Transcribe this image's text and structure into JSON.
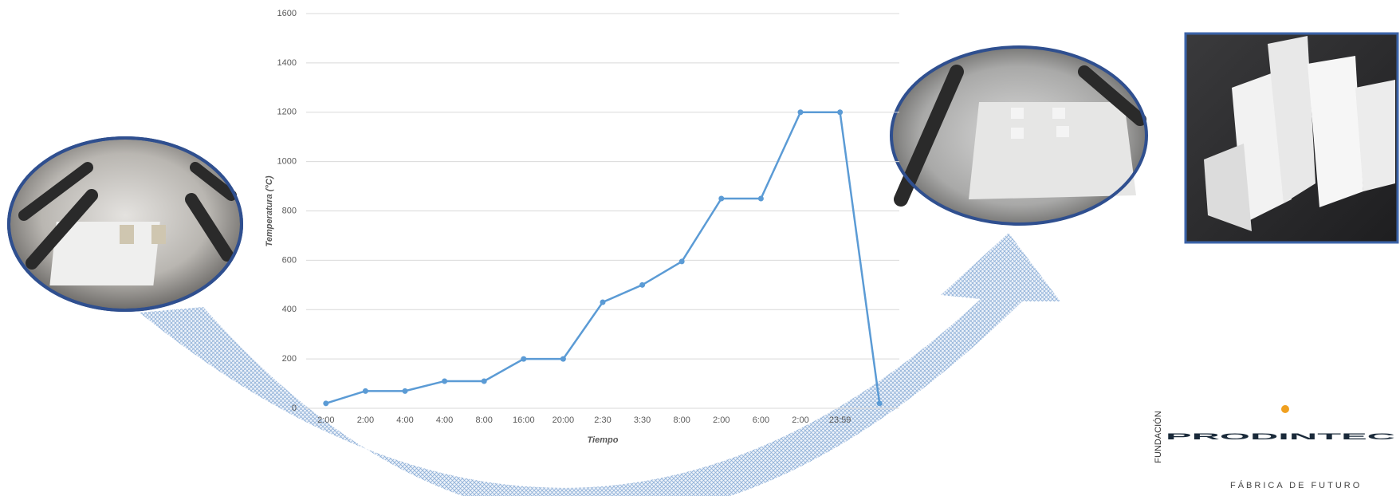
{
  "chart_data": {
    "type": "line",
    "x_label": "Tiempo",
    "y_label": "Temperatura (°C)",
    "categories": [
      "2:00",
      "2:00",
      "4:00",
      "4:00",
      "8:00",
      "16:00",
      "20:00",
      "2:30",
      "3:30",
      "8:00",
      "2:00",
      "6:00",
      "2:00",
      "23:59",
      null
    ],
    "values": [
      20,
      70,
      70,
      110,
      110,
      200,
      200,
      430,
      500,
      595,
      850,
      850,
      1200,
      1200,
      20
    ],
    "color": "#5b9bd5",
    "ylim": [
      0,
      1600
    ],
    "yticks": [
      0,
      200,
      400,
      600,
      800,
      1000,
      1200,
      1400,
      1600
    ],
    "grid": true
  },
  "logo": {
    "name": "PRODINTEC",
    "foundation": "FUNDACIÓN",
    "tagline": "FÁBRICA DE FUTURO"
  }
}
